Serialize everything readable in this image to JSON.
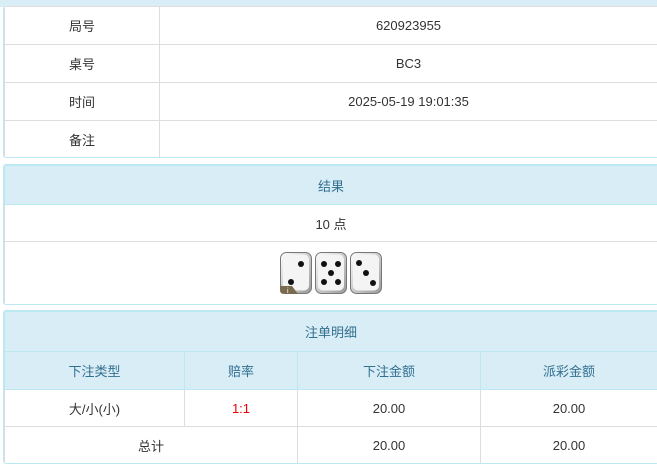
{
  "info": {
    "rows": [
      {
        "label": "局号",
        "value": "620923955"
      },
      {
        "label": "桌号",
        "value": "BC3"
      },
      {
        "label": "时间",
        "value": "2025-05-19 19:01:35"
      },
      {
        "label": "备注",
        "value": ""
      }
    ]
  },
  "result": {
    "title": "结果",
    "points": "10 点",
    "dice": [
      2,
      5,
      3
    ]
  },
  "bets": {
    "title": "注单明细",
    "headers": [
      "下注类型",
      "赔率",
      "下注金额",
      "派彩金额"
    ],
    "rows": [
      {
        "type": "大/小(小)",
        "odds": "1:1",
        "amount": "20.00",
        "payout": "20.00"
      }
    ],
    "total": {
      "label": "总计",
      "amount": "20.00",
      "payout": "20.00"
    }
  },
  "colors": {
    "header_bg": "#d9edf7",
    "header_text": "#31708f",
    "odds": "#e00000"
  }
}
